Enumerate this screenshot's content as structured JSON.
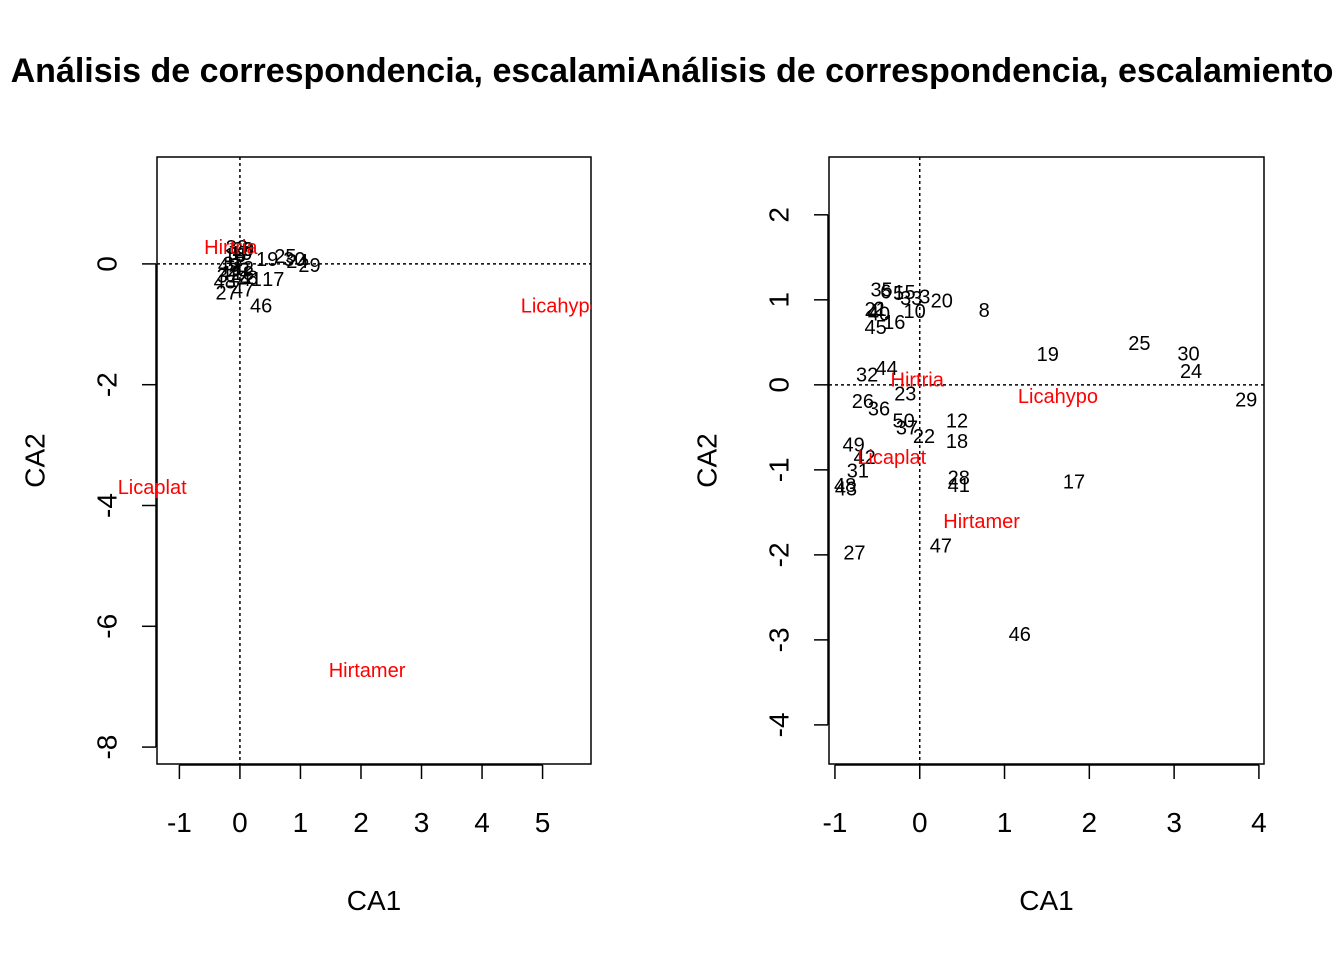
{
  "title": "Análisis de correspondencia, escalamiAnálisis de correspondencia, escalamiento",
  "colors": {
    "sites": "#000000",
    "species": "#ff0000",
    "axes": "#000000"
  },
  "chart_data": [
    {
      "type": "scatter",
      "xlabel": "CA1",
      "ylabel": "CA2",
      "xticks": [
        -1,
        0,
        1,
        2,
        3,
        4,
        5
      ],
      "yticks": [
        0,
        -2,
        -4,
        -6,
        -8
      ],
      "xlim": [
        -1.37,
        5.8
      ],
      "ylim": [
        -8.28,
        1.77
      ],
      "crosshair": true,
      "sites": [
        {
          "label": "19",
          "x": 0.45,
          "y": 0.05
        },
        {
          "label": "25",
          "x": 0.75,
          "y": 0.1
        },
        {
          "label": "30",
          "x": 0.9,
          "y": 0.05
        },
        {
          "label": "24",
          "x": 0.95,
          "y": 0.02
        },
        {
          "label": "29",
          "x": 1.15,
          "y": -0.05
        },
        {
          "label": "17",
          "x": 0.55,
          "y": -0.28
        },
        {
          "label": "46",
          "x": 0.35,
          "y": -0.72
        },
        {
          "label": "47",
          "x": 0.05,
          "y": -0.45
        },
        {
          "label": "27",
          "x": -0.22,
          "y": -0.5
        },
        {
          "label": "41",
          "x": 0.18,
          "y": -0.28
        },
        {
          "label": "28",
          "x": 0.12,
          "y": -0.25
        },
        {
          "label": "18",
          "x": 0.05,
          "y": -0.18
        },
        {
          "label": "12",
          "x": 0.05,
          "y": -0.1
        },
        {
          "label": "22",
          "x": -0.02,
          "y": -0.12
        },
        {
          "label": "48",
          "x": -0.25,
          "y": -0.32
        },
        {
          "label": "31",
          "x": -0.2,
          "y": -0.22
        },
        {
          "label": "42",
          "x": -0.15,
          "y": -0.18
        },
        {
          "label": "49",
          "x": -0.18,
          "y": -0.05
        },
        {
          "label": "37",
          "x": -0.1,
          "y": -0.02
        },
        {
          "label": "8",
          "x": 0.12,
          "y": 0.22
        },
        {
          "label": "20",
          "x": 0.05,
          "y": 0.22
        },
        {
          "label": "33",
          "x": -0.05,
          "y": 0.25
        },
        {
          "label": "10",
          "x": 0.02,
          "y": 0.15
        },
        {
          "label": "16",
          "x": -0.08,
          "y": 0.12
        }
      ],
      "species": [
        {
          "label": "Hirtria",
          "x": -0.15,
          "y": 0.25
        },
        {
          "label": "Licahypo",
          "x": 5.3,
          "y": -0.72
        },
        {
          "label": "Licaplat",
          "x": -1.45,
          "y": -3.72
        },
        {
          "label": "Hirtamer",
          "x": 2.1,
          "y": -6.75
        }
      ]
    },
    {
      "type": "scatter",
      "xlabel": "CA1",
      "ylabel": "CA2",
      "xticks": [
        -1,
        0,
        1,
        2,
        3,
        4
      ],
      "yticks": [
        2,
        1,
        0,
        -1,
        -2,
        -3,
        -4
      ],
      "xlim": [
        -1.07,
        4.06
      ],
      "ylim": [
        -4.46,
        2.68
      ],
      "crosshair": true,
      "sites": [
        {
          "label": "8",
          "x": 0.76,
          "y": 0.86
        },
        {
          "label": "20",
          "x": 0.26,
          "y": 0.97
        },
        {
          "label": "3",
          "x": 0.06,
          "y": 1.02
        },
        {
          "label": "33",
          "x": -0.1,
          "y": 1.0
        },
        {
          "label": "10",
          "x": -0.06,
          "y": 0.85
        },
        {
          "label": "5",
          "x": -0.25,
          "y": 1.06
        },
        {
          "label": "6",
          "x": -0.4,
          "y": 1.08
        },
        {
          "label": "35",
          "x": -0.45,
          "y": 1.1
        },
        {
          "label": "15",
          "x": -0.18,
          "y": 1.07
        },
        {
          "label": "16",
          "x": -0.3,
          "y": 0.72
        },
        {
          "label": "2",
          "x": -0.48,
          "y": 0.88
        },
        {
          "label": "21",
          "x": -0.52,
          "y": 0.87
        },
        {
          "label": "40",
          "x": -0.48,
          "y": 0.82
        },
        {
          "label": "4",
          "x": -0.55,
          "y": 0.85
        },
        {
          "label": "45",
          "x": -0.52,
          "y": 0.66
        },
        {
          "label": "44",
          "x": -0.39,
          "y": 0.18
        },
        {
          "label": "32",
          "x": -0.62,
          "y": 0.1
        },
        {
          "label": "19",
          "x": 1.51,
          "y": 0.34
        },
        {
          "label": "25",
          "x": 2.59,
          "y": 0.47
        },
        {
          "label": "30",
          "x": 3.17,
          "y": 0.35
        },
        {
          "label": "24",
          "x": 3.2,
          "y": 0.14
        },
        {
          "label": "29",
          "x": 3.85,
          "y": -0.19
        },
        {
          "label": "23",
          "x": -0.17,
          "y": -0.12
        },
        {
          "label": "26",
          "x": -0.67,
          "y": -0.21
        },
        {
          "label": "36",
          "x": -0.48,
          "y": -0.3
        },
        {
          "label": "50",
          "x": -0.19,
          "y": -0.44
        },
        {
          "label": "37",
          "x": -0.15,
          "y": -0.52
        },
        {
          "label": "22",
          "x": 0.05,
          "y": -0.62
        },
        {
          "label": "12",
          "x": 0.44,
          "y": -0.44
        },
        {
          "label": "18",
          "x": 0.44,
          "y": -0.68
        },
        {
          "label": "49",
          "x": -0.78,
          "y": -0.72
        },
        {
          "label": "42",
          "x": -0.65,
          "y": -0.87
        },
        {
          "label": "31",
          "x": -0.73,
          "y": -1.03
        },
        {
          "label": "48",
          "x": -0.88,
          "y": -1.2
        },
        {
          "label": "43",
          "x": -0.87,
          "y": -1.24
        },
        {
          "label": "28",
          "x": 0.46,
          "y": -1.11
        },
        {
          "label": "41",
          "x": 0.46,
          "y": -1.2
        },
        {
          "label": "17",
          "x": 1.82,
          "y": -1.16
        },
        {
          "label": "47",
          "x": 0.25,
          "y": -1.91
        },
        {
          "label": "27",
          "x": -0.77,
          "y": -1.99
        },
        {
          "label": "46",
          "x": 1.18,
          "y": -2.95
        }
      ],
      "species": [
        {
          "label": "Hirtria",
          "x": -0.03,
          "y": 0.04
        },
        {
          "label": "Licahypo",
          "x": 1.63,
          "y": -0.15
        },
        {
          "label": "Licaplat",
          "x": -0.33,
          "y": -0.87
        },
        {
          "label": "Hirtamer",
          "x": 0.73,
          "y": -1.62
        }
      ]
    }
  ]
}
